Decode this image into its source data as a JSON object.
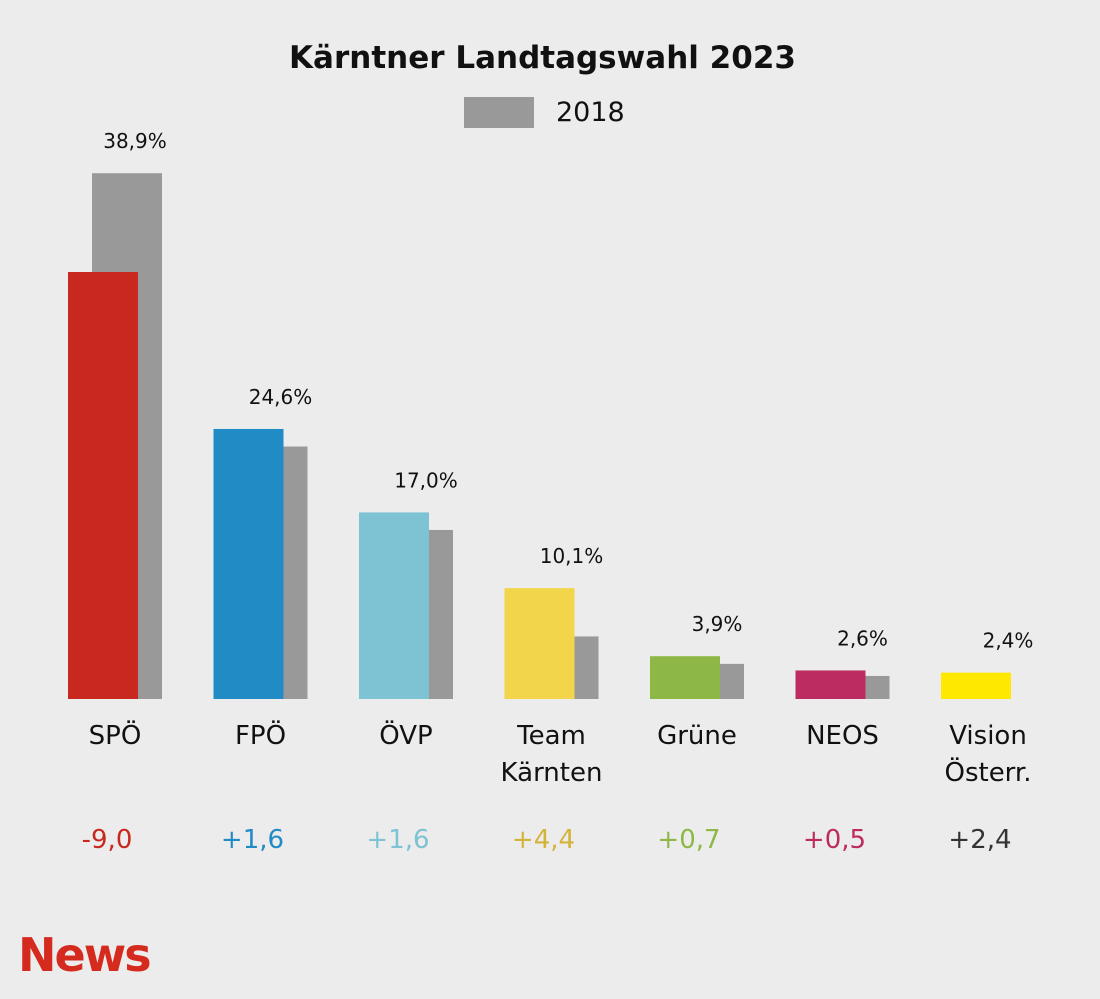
{
  "chart_data": {
    "type": "bar",
    "title": "Kärntner Landtagswahl 2023",
    "legend": {
      "label": "2018",
      "color": "#999999",
      "placement": "top-center"
    },
    "categories": [
      [
        "SPÖ"
      ],
      [
        "FPÖ"
      ],
      [
        "ÖVP"
      ],
      [
        "Team",
        "Kärnten"
      ],
      [
        "Grüne"
      ],
      [
        "NEOS"
      ],
      [
        "Vision",
        "Österr."
      ]
    ],
    "series": [
      {
        "values": [
          38.9,
          24.6,
          17.0,
          10.1,
          3.9,
          2.6,
          2.4
        ],
        "labels": [
          "38,9%",
          "24,6%",
          "17,0%",
          "10,1%",
          "3,9%",
          "2,6%",
          "2,4%"
        ],
        "colors": [
          "#c8281e",
          "#218bc6",
          "#7ec3d4",
          "#f2d54b",
          "#8db846",
          "#bc2c61",
          "#ffe800"
        ]
      },
      {
        "name": "2018",
        "values": [
          47.9,
          23.0,
          15.4,
          5.7,
          3.2,
          2.1,
          null
        ],
        "color": "#999999"
      }
    ],
    "changes": [
      "-9,0",
      "+1,6",
      "+1,6",
      "+4,4",
      "+0,7",
      "+0,5",
      "+2,4"
    ],
    "change_colors": [
      "#c8281e",
      "#218bc6",
      "#7ec3d4",
      "#d4b33a",
      "#8db846",
      "#bc2c61",
      "#333333"
    ],
    "ylim": [
      0,
      55
    ],
    "grid": false
  },
  "brand": {
    "logo_text": "News",
    "logo_color": "#d52b1e"
  }
}
